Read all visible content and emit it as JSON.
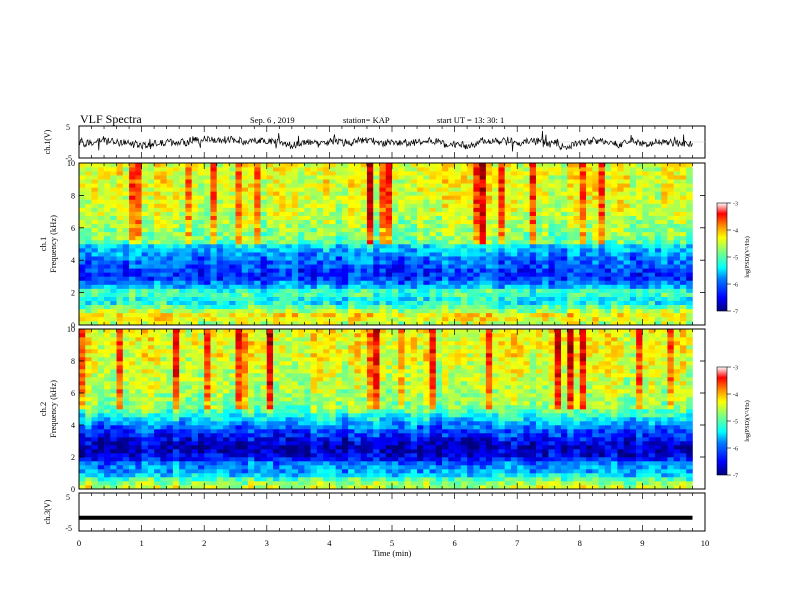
{
  "header": {
    "title": "VLF Spectra",
    "date": "Sep. 6  , 2019",
    "station": "station= KAP",
    "start_ut": "start  UT  =   13: 30: 1"
  },
  "chart_data": [
    {
      "type": "line",
      "panel": "ch1-waveform",
      "ylabel": "ch.1(V)",
      "ylim": [
        -5,
        5
      ],
      "yticks": [
        "5",
        "-5"
      ],
      "xlim": [
        0,
        10
      ],
      "description_values": {
        "baseline": 0,
        "typical_amplitude": 1.5,
        "trace_end_min": 9.8
      },
      "color": "#000000"
    },
    {
      "type": "heatmap",
      "panel": "ch1-spectrogram",
      "ylabel_channel": "ch.1",
      "ylabel": "Frequency  (kHz)",
      "ylim": [
        0,
        10
      ],
      "yticks": [
        "0",
        "2",
        "4",
        "6",
        "8",
        "10"
      ],
      "xlim": [
        0,
        9.8
      ],
      "colorbar": {
        "label": "log(PSD)(V²/Hz)",
        "range": [
          -7,
          -3
        ],
        "ticks": [
          "-3",
          "-4",
          "-5",
          "-6",
          "-7"
        ]
      },
      "frequency_profile_kHz": [
        {
          "f": 0.0,
          "level": -4.8
        },
        {
          "f": 0.6,
          "level": -4.4
        },
        {
          "f": 1.0,
          "level": -5.0
        },
        {
          "f": 1.5,
          "level": -5.6
        },
        {
          "f": 2.0,
          "level": -5.1
        },
        {
          "f": 2.4,
          "level": -5.8
        },
        {
          "f": 3.0,
          "level": -6.4
        },
        {
          "f": 3.6,
          "level": -6.2
        },
        {
          "f": 4.2,
          "level": -6.0
        },
        {
          "f": 4.8,
          "level": -5.7
        },
        {
          "f": 5.2,
          "level": -5.0
        },
        {
          "f": 6.0,
          "level": -4.9
        },
        {
          "f": 7.0,
          "level": -4.7
        },
        {
          "f": 8.0,
          "level": -4.6
        },
        {
          "f": 10.0,
          "level": -4.6
        }
      ]
    },
    {
      "type": "heatmap",
      "panel": "ch2-spectrogram",
      "ylabel_channel": "ch.2",
      "ylabel": "Frequency  (kHz)",
      "ylim": [
        0,
        10
      ],
      "yticks": [
        "0",
        "2",
        "4",
        "6",
        "8",
        "10"
      ],
      "xlim": [
        0,
        9.8
      ],
      "colorbar": {
        "label": "log(PSD)(V²/Hz)",
        "range": [
          -7,
          -3
        ],
        "ticks": [
          "-3",
          "-4",
          "-5",
          "-6",
          "-7"
        ]
      },
      "frequency_profile_kHz": [
        {
          "f": 0.0,
          "level": -4.6
        },
        {
          "f": 0.5,
          "level": -5.0
        },
        {
          "f": 1.0,
          "level": -5.8
        },
        {
          "f": 1.6,
          "level": -6.0
        },
        {
          "f": 2.0,
          "level": -6.6
        },
        {
          "f": 2.6,
          "level": -6.8
        },
        {
          "f": 3.2,
          "level": -6.5
        },
        {
          "f": 3.8,
          "level": -6.1
        },
        {
          "f": 4.4,
          "level": -5.6
        },
        {
          "f": 5.0,
          "level": -5.0
        },
        {
          "f": 6.0,
          "level": -4.8
        },
        {
          "f": 7.0,
          "level": -4.7
        },
        {
          "f": 8.0,
          "level": -4.6
        },
        {
          "f": 10.0,
          "level": -4.5
        }
      ]
    },
    {
      "type": "line",
      "panel": "ch3-waveform",
      "ylabel": "ch.3(V)",
      "ylim": [
        -5,
        5
      ],
      "yticks": [
        "5",
        "-5"
      ],
      "xlim": [
        0,
        10
      ],
      "constant_value_V": -1.5,
      "color": "#000000"
    }
  ],
  "x_axis": {
    "label": "Time  (min)",
    "ticks": [
      "0",
      "1",
      "2",
      "3",
      "4",
      "5",
      "6",
      "7",
      "8",
      "9",
      "10"
    ],
    "range": [
      0,
      10
    ]
  },
  "colors": {
    "scale": [
      "#00007f",
      "#0000ff",
      "#007fff",
      "#00ffff",
      "#7fff7f",
      "#ffff00",
      "#ff7f00",
      "#ff0000",
      "#7f0000"
    ]
  }
}
